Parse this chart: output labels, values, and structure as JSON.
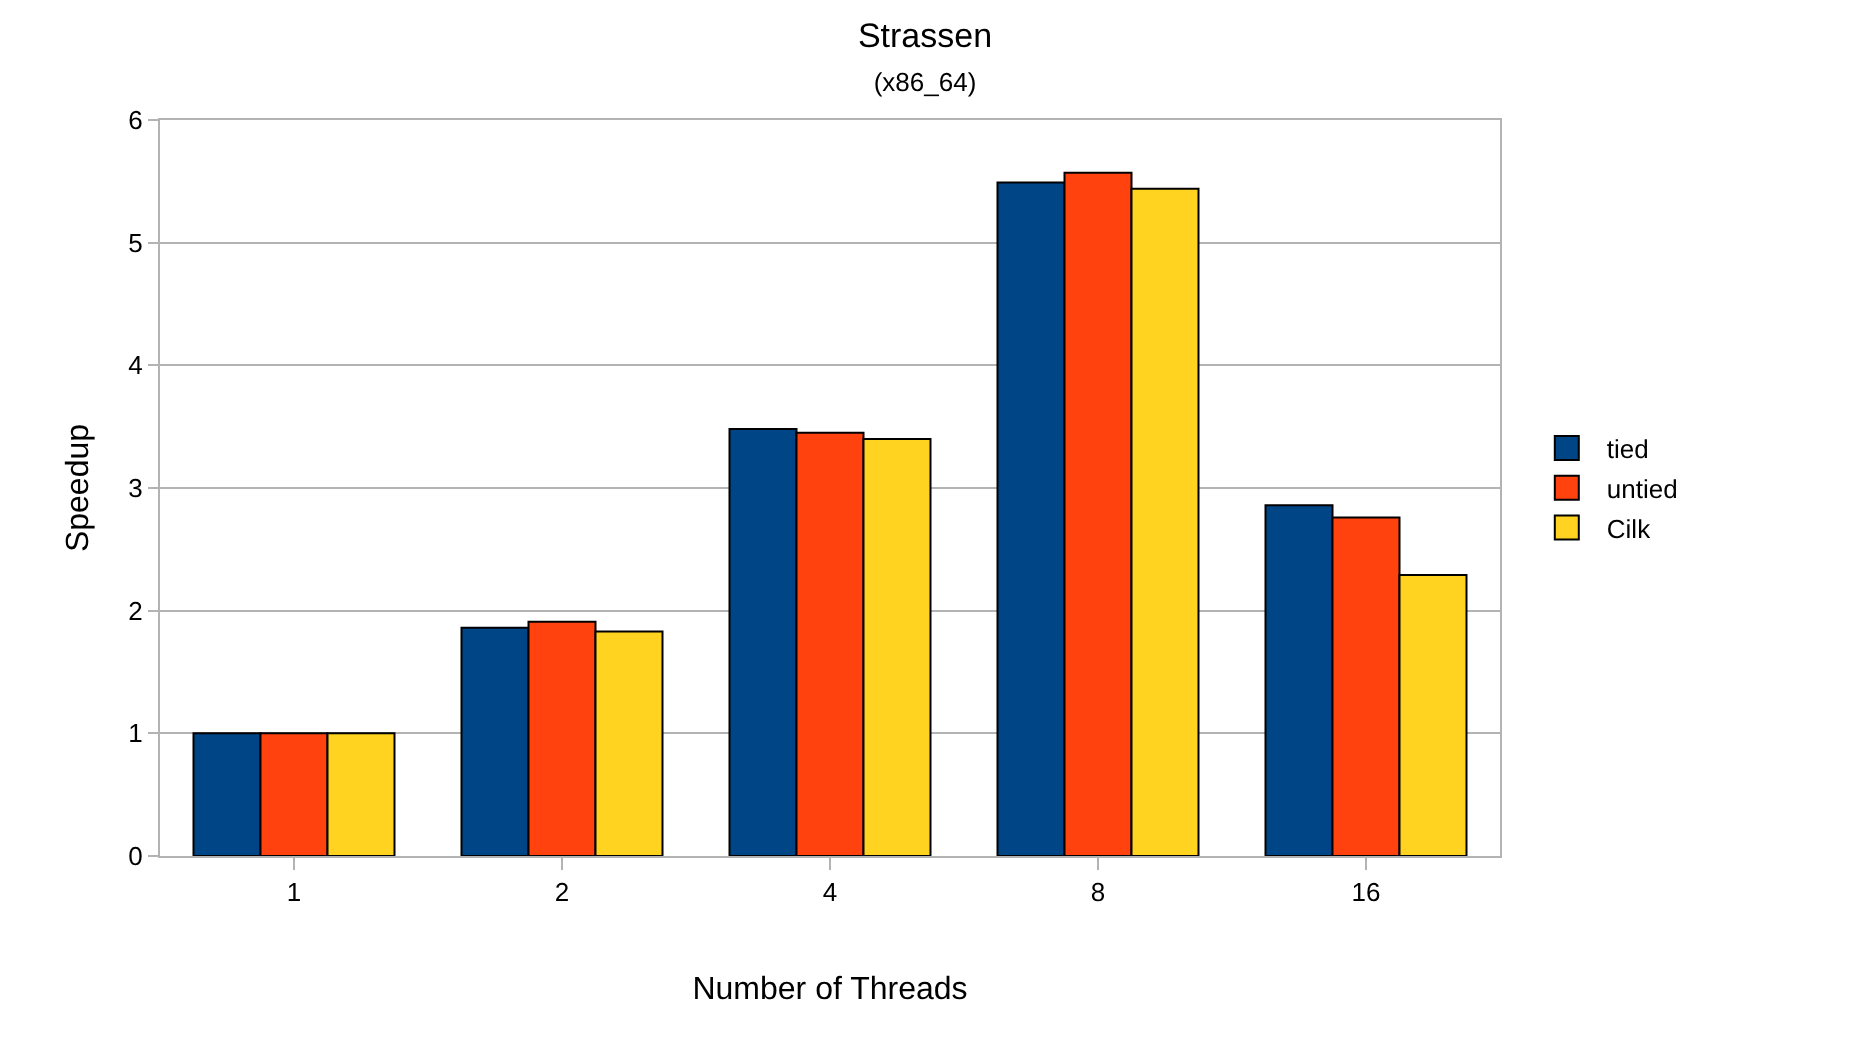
{
  "chart_data": {
    "type": "bar",
    "title": "Strassen",
    "subtitle": "(x86_64)",
    "xlabel": "Number of Threads",
    "ylabel": "Speedup",
    "categories": [
      "1",
      "2",
      "4",
      "8",
      "16"
    ],
    "series": [
      {
        "name": "tied",
        "color": "#004586",
        "values": [
          1.0,
          1.86,
          3.48,
          5.49,
          2.86
        ]
      },
      {
        "name": "untied",
        "color": "#ff420e",
        "values": [
          1.0,
          1.91,
          3.45,
          5.57,
          2.76
        ]
      },
      {
        "name": "Cilk",
        "color": "#ffd320",
        "values": [
          1.0,
          1.83,
          3.4,
          5.44,
          2.29
        ]
      }
    ],
    "ylim": [
      0,
      6
    ],
    "yticks": [
      0,
      1,
      2,
      3,
      4,
      5,
      6
    ],
    "grid": "y",
    "legend": "right"
  }
}
